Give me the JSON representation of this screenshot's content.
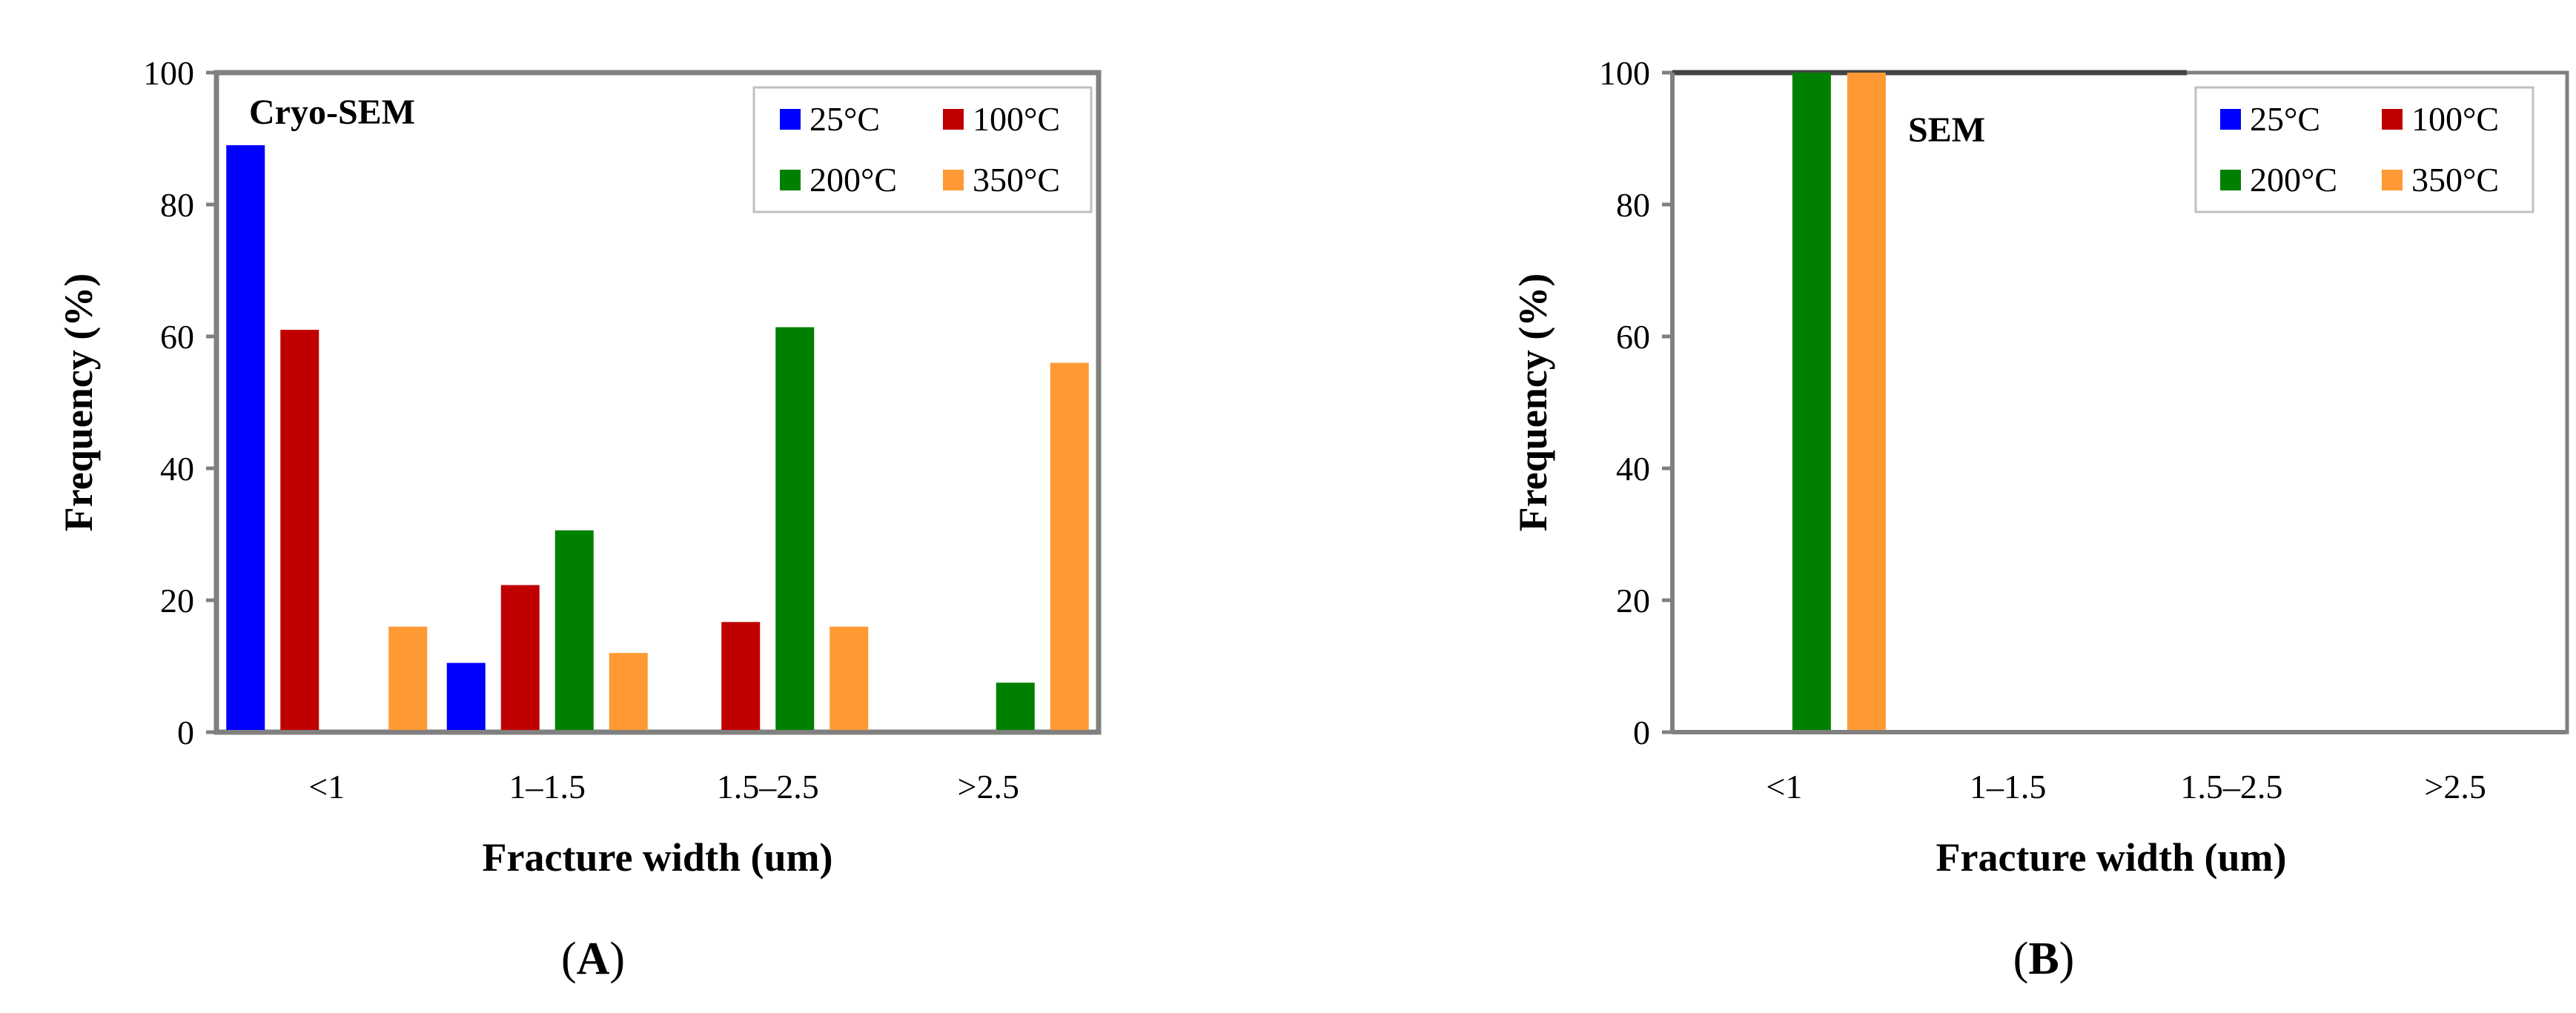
{
  "chart_data": [
    {
      "type": "bar",
      "panel_label": "Cryo-SEM",
      "caption": {
        "open": "(",
        "letter": "A",
        "close": ")"
      },
      "categories": [
        "<1",
        "1–1.5",
        "1.5–2.5",
        ">2.5"
      ],
      "series": [
        {
          "name": "25°C",
          "color": "#0000ff",
          "values": [
            89,
            10.5,
            0,
            0
          ]
        },
        {
          "name": "100°C",
          "color": "#c00000",
          "values": [
            61,
            22.3,
            16.7,
            0
          ]
        },
        {
          "name": "200°C",
          "color": "#008000",
          "values": [
            0,
            30.6,
            61.4,
            7.5
          ]
        },
        {
          "name": "350°C",
          "color": "#ff9933",
          "values": [
            16,
            12,
            16,
            56
          ]
        }
      ],
      "xlabel": "Fracture width (um)",
      "ylabel": "Frequency (%)",
      "ylim": [
        0,
        100
      ],
      "yticks": [
        "0",
        "20",
        "40",
        "60",
        "80",
        "100"
      ],
      "grid": false,
      "legend_position": "top-right"
    },
    {
      "type": "bar",
      "panel_label": "SEM",
      "caption": {
        "open": "(",
        "letter": "B",
        "close": ")"
      },
      "categories": [
        "<1",
        "1–1.5",
        "1.5–2.5",
        ">2.5"
      ],
      "series": [
        {
          "name": "25°C",
          "color": "#0000ff",
          "values": [
            0,
            0,
            0,
            0
          ]
        },
        {
          "name": "100°C",
          "color": "#c00000",
          "values": [
            0,
            0,
            0,
            0
          ]
        },
        {
          "name": "200°C",
          "color": "#008000",
          "values": [
            100,
            0,
            0,
            0
          ]
        },
        {
          "name": "350°C",
          "color": "#ff9933",
          "values": [
            100,
            0,
            0,
            0
          ]
        }
      ],
      "xlabel": "Fracture width (um)",
      "ylabel": "Frequency (%)",
      "ylim": [
        0,
        100
      ],
      "yticks": [
        "0",
        "20",
        "40",
        "60",
        "80",
        "100"
      ],
      "grid": false,
      "legend_position": "top-right"
    }
  ]
}
